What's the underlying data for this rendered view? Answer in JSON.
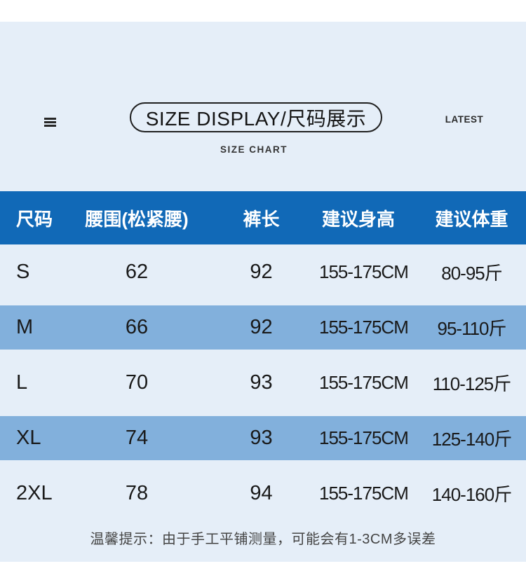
{
  "header": {
    "menu_icon": "hamburger-icon",
    "title": "SIZE DISPLAY/尺码展示",
    "subtitle": "SIZE CHART",
    "corner_label": "LATEST"
  },
  "table": {
    "columns": [
      "尺码",
      "腰围(松紧腰)",
      "裤长",
      "建议身高",
      "建议体重"
    ],
    "rows": [
      {
        "size": "S",
        "waist": "62",
        "length": "92",
        "height": "155-175CM",
        "weight": "80-95斤",
        "banded": false
      },
      {
        "size": "M",
        "waist": "66",
        "length": "92",
        "height": "155-175CM",
        "weight": "95-110斤",
        "banded": true
      },
      {
        "size": "L",
        "waist": "70",
        "length": "93",
        "height": "155-175CM",
        "weight": "110-125斤",
        "banded": false
      },
      {
        "size": "XL",
        "waist": "74",
        "length": "93",
        "height": "155-175CM",
        "weight": "125-140斤",
        "banded": true
      },
      {
        "size": "2XL",
        "waist": "78",
        "length": "94",
        "height": "155-175CM",
        "weight": "140-160斤",
        "banded": false
      }
    ],
    "note": "温馨提示：由于手工平铺测量，可能会有1-3CM多误差"
  },
  "colors": {
    "header_bg": "#1169b7",
    "band_bg": "#82b0dc",
    "section_bg": "#e5eef8",
    "text_dark": "#191919",
    "note_text": "#454545"
  },
  "chart_data": {
    "type": "table",
    "title": "SIZE DISPLAY/尺码展示",
    "subtitle": "SIZE CHART",
    "columns": [
      "尺码",
      "腰围(松紧腰)",
      "裤长",
      "建议身高",
      "建议体重"
    ],
    "rows": [
      [
        "S",
        "62",
        "92",
        "155-175CM",
        "80-95斤"
      ],
      [
        "M",
        "66",
        "92",
        "155-175CM",
        "95-110斤"
      ],
      [
        "L",
        "70",
        "93",
        "155-175CM",
        "110-125斤"
      ],
      [
        "XL",
        "74",
        "93",
        "155-175CM",
        "125-140斤"
      ],
      [
        "2XL",
        "78",
        "94",
        "155-175CM",
        "140-160斤"
      ]
    ],
    "note": "温馨提示：由于手工平铺测量，可能会有1-3CM多误差",
    "layout": {
      "banded_rows": [
        "M",
        "XL"
      ],
      "header_style": "solid-blue",
      "units": {
        "waist": "cm",
        "length": "cm"
      }
    }
  }
}
